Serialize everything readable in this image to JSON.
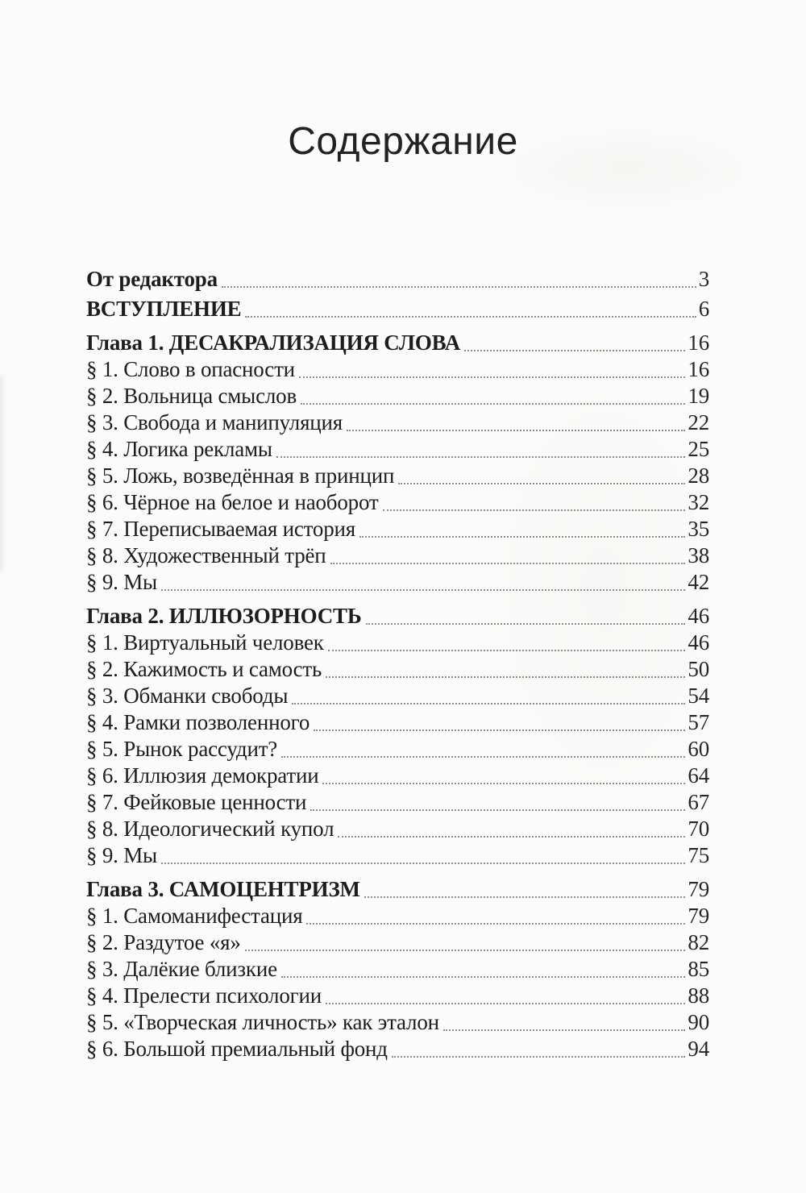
{
  "title": "Содержание",
  "colors": {
    "paper": "#fcfcfa",
    "text": "#1d1d1d",
    "leader_dots": "#8c8c88"
  },
  "entries": [
    {
      "label": "От редактора",
      "page": "3",
      "type": "front"
    },
    {
      "label": "ВСТУПЛЕНИЕ",
      "page": "6",
      "type": "front intro"
    },
    {
      "label": "Глава 1. ДЕСАКРАЛИЗАЦИЯ СЛОВА",
      "page": "16",
      "type": "chapter"
    },
    {
      "label": "§ 1. Слово в опасности",
      "page": "16",
      "type": "section"
    },
    {
      "label": "§ 2. Вольница смыслов",
      "page": "19",
      "type": "section"
    },
    {
      "label": "§ 3. Свобода и манипуляция",
      "page": "22",
      "type": "section"
    },
    {
      "label": "§ 4. Логика рекламы",
      "page": "25",
      "type": "section"
    },
    {
      "label": "§ 5. Ложь, возведённая в принцип",
      "page": "28",
      "type": "section"
    },
    {
      "label": "§ 6. Чёрное на белое и наоборот",
      "page": "32",
      "type": "section"
    },
    {
      "label": "§ 7. Переписываемая история",
      "page": "35",
      "type": "section"
    },
    {
      "label": "§ 8. Художественный трёп",
      "page": "38",
      "type": "section"
    },
    {
      "label": "§ 9. Мы",
      "page": "42",
      "type": "section"
    },
    {
      "label": "Глава 2. ИЛЛЮЗОРНОСТЬ",
      "page": "46",
      "type": "chapter"
    },
    {
      "label": "§ 1. Виртуальный человек",
      "page": "46",
      "type": "section"
    },
    {
      "label": "§ 2. Кажимость и самость",
      "page": "50",
      "type": "section"
    },
    {
      "label": "§ 3. Обманки свободы",
      "page": "54",
      "type": "section"
    },
    {
      "label": "§ 4. Рамки позволенного",
      "page": "57",
      "type": "section"
    },
    {
      "label": "§ 5. Рынок рассудит?",
      "page": "60",
      "type": "section"
    },
    {
      "label": "§ 6. Иллюзия демократии",
      "page": "64",
      "type": "section"
    },
    {
      "label": "§ 7. Фейковые ценности",
      "page": "67",
      "type": "section"
    },
    {
      "label": "§ 8. Идеологический купол",
      "page": "70",
      "type": "section"
    },
    {
      "label": "§ 9. Мы",
      "page": "75",
      "type": "section"
    },
    {
      "label": "Глава 3. САМОЦЕНТРИЗМ",
      "page": "79",
      "type": "chapter"
    },
    {
      "label": "§ 1. Самоманифестация",
      "page": "79",
      "type": "section"
    },
    {
      "label": "§ 2. Раздутое «я»",
      "page": "82",
      "type": "section"
    },
    {
      "label": "§ 3. Далёкие близкие",
      "page": "85",
      "type": "section"
    },
    {
      "label": "§ 4. Прелести психологии",
      "page": "88",
      "type": "section"
    },
    {
      "label": "§ 5. «Творческая личность» как эталон",
      "page": "90",
      "type": "section"
    },
    {
      "label": "§ 6. Большой премиальный фонд",
      "page": "94",
      "type": "section"
    }
  ]
}
